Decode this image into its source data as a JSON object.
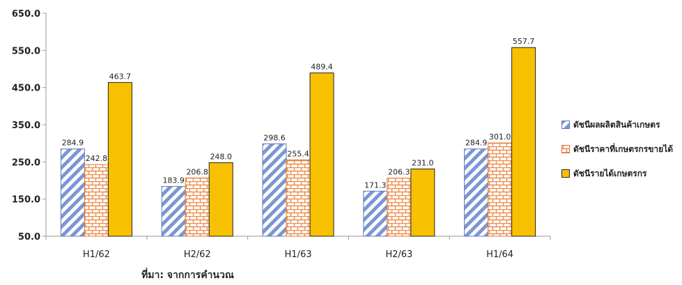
{
  "chart_data": {
    "type": "bar",
    "categories": [
      "H1/62",
      "H2/62",
      "H1/63",
      "H2/63",
      "H1/64"
    ],
    "series": [
      {
        "name": "ดัชนีผลผลิตสินค้าเกษตร",
        "values": [
          284.9,
          183.9,
          298.6,
          171.3,
          284.9
        ],
        "labels": [
          "284.9",
          "183.9",
          "298.6",
          "171.3",
          "284.9"
        ],
        "color": "#7b96d4",
        "pattern": "diagonal-stripes"
      },
      {
        "name": "ดัชนีราคาที่เกษตรกรขายได้",
        "values": [
          242.8,
          206.8,
          255.4,
          206.3,
          301.0
        ],
        "labels": [
          "242.8",
          "206.8",
          "255.4",
          "206.3",
          "301.0"
        ],
        "color": "#f08b4a",
        "pattern": "brick"
      },
      {
        "name": "ดัชนีรายได้เกษตรกร",
        "values": [
          463.7,
          248.0,
          489.4,
          231.0,
          557.7
        ],
        "labels": [
          "463.7",
          "248.0",
          "489.4",
          "231.0",
          "557.7"
        ],
        "color": "#f7c000",
        "pattern": "solid"
      }
    ],
    "yticks": [
      "50.0",
      "150.0",
      "250.0",
      "350.0",
      "450.0",
      "550.0",
      "650.0"
    ],
    "ylim": [
      50,
      650
    ],
    "legend_position": "right",
    "grid": false
  },
  "source_note": "ที่มา: จากการคำนวณ"
}
